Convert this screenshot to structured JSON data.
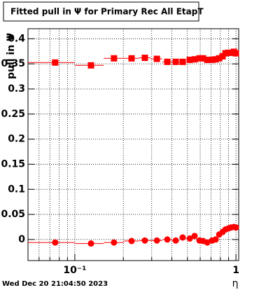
{
  "chart_data": {
    "type": "scatter",
    "title": "Fitted pull in  Ψ  for Primary Rec All EtapT",
    "y_label": "pull in Ψ",
    "x_label": "η",
    "footer": "Wed Dec 20 21:04:50 2023",
    "log_x": true,
    "grid": true,
    "xlim": [
      0.0512,
      1.04
    ],
    "ylim": [
      -0.042,
      0.42
    ],
    "xticks": [
      {
        "value": 0.1,
        "label": "10⁻¹"
      },
      1
    ],
    "xminorticks": [
      0.06,
      0.07,
      0.08,
      0.09,
      0.2,
      0.3,
      0.4,
      0.5,
      0.6,
      0.7,
      0.8,
      0.9
    ],
    "yticks": [
      0,
      0.05,
      0.1,
      0.15,
      0.2,
      0.25,
      0.3,
      0.35,
      0.4
    ],
    "x": [
      0.0755,
      0.126,
      0.175,
      0.225,
      0.272,
      0.323,
      0.375,
      0.423,
      0.467,
      0.517,
      0.554,
      0.594,
      0.625,
      0.664,
      0.712,
      0.748,
      0.787,
      0.826,
      0.861,
      0.896,
      0.933,
      0.971,
      1.0
    ],
    "bins": [
      0.0512,
      0.1,
      0.151,
      0.201,
      0.251,
      0.295,
      0.349,
      0.398,
      0.445,
      0.491,
      0.537,
      0.576,
      0.612,
      0.644,
      0.69,
      0.733,
      0.771,
      0.811,
      0.844,
      0.878,
      0.913,
      0.951,
      0.991,
      1.03
    ],
    "series": [
      {
        "marker": "square",
        "color": "#ff0000",
        "values": [
          0.3526,
          0.347,
          0.361,
          0.361,
          0.362,
          0.36,
          0.354,
          0.354,
          0.354,
          0.358,
          0.359,
          0.361,
          0.361,
          0.358,
          0.358,
          0.359,
          0.361,
          0.365,
          0.371,
          0.372,
          0.372,
          0.374,
          0.371
        ]
      },
      {
        "marker": "circle",
        "color": "#ff0000",
        "values": [
          -0.006,
          -0.008,
          -0.006,
          -0.003,
          -0.002,
          -0.002,
          0,
          -0.002,
          0.004,
          0.002,
          0.007,
          -0.002,
          -0.003,
          -0.006,
          -0.002,
          0,
          0.01,
          0.015,
          0.02,
          0.022,
          0.024,
          0.025,
          0.024
        ]
      }
    ]
  }
}
